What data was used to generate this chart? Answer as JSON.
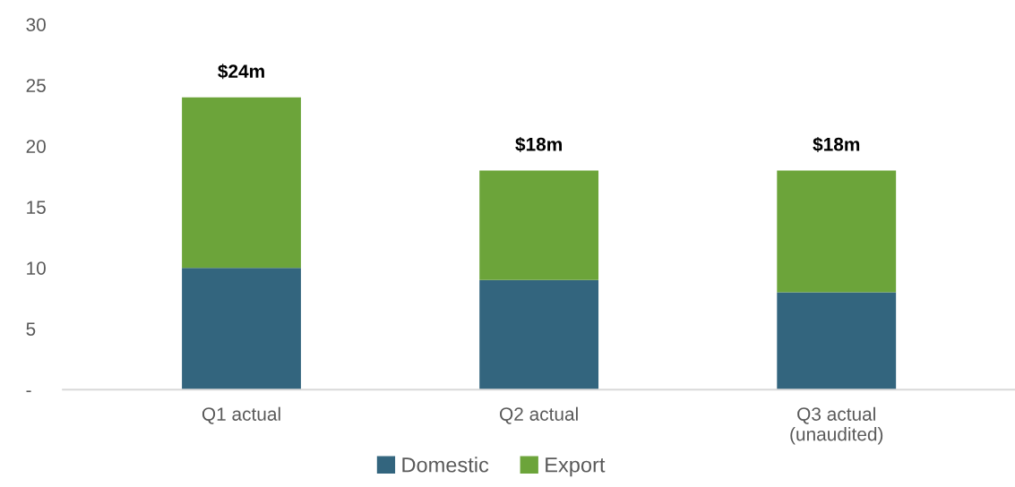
{
  "chart_data": {
    "type": "bar",
    "stacked": true,
    "categories": [
      "Q1 actual",
      "Q2 actual",
      "Q3 actual\n(unaudited)"
    ],
    "series": [
      {
        "name": "Domestic",
        "color": "#33657e",
        "values": [
          10,
          9,
          8
        ]
      },
      {
        "name": "Export",
        "color": "#6ca43a",
        "values": [
          14,
          9,
          10
        ]
      }
    ],
    "totals": [
      "$24m",
      "$18m",
      "$18m"
    ],
    "ylim": [
      0,
      30
    ],
    "yticks": [
      {
        "value": 0,
        "label": "-"
      },
      5,
      10,
      15,
      20,
      25,
      30
    ],
    "grid": false,
    "legend": "bottom"
  }
}
